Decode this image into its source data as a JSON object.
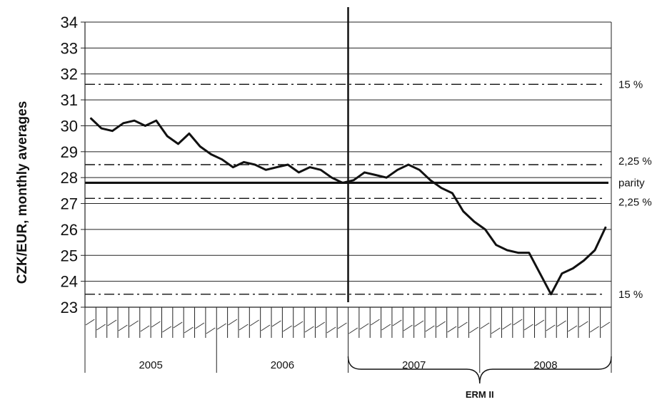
{
  "chart_data": {
    "type": "line",
    "ylabel": "CZK/EUR, monthly averages",
    "ylim": [
      23,
      34
    ],
    "yticks": [
      "23",
      "24",
      "25",
      "26",
      "27",
      "28",
      "29",
      "30",
      "31",
      "32",
      "33",
      "34"
    ],
    "years": [
      "2005",
      "2006",
      "2007",
      "2008"
    ],
    "months_per_year": 12,
    "grid": "horizontal",
    "series": [
      {
        "values": [
          30.3,
          29.9,
          29.8,
          30.1,
          30.2,
          30.0,
          30.2,
          29.6,
          29.3,
          29.7,
          29.2,
          28.9,
          28.7,
          28.4,
          28.6,
          28.5,
          28.3,
          28.4,
          28.5,
          28.2,
          28.4,
          28.3,
          28.0,
          27.8,
          27.9,
          28.2,
          28.1,
          28.0,
          28.3,
          28.5,
          28.3,
          27.9,
          27.6,
          27.4,
          26.7,
          26.3,
          26.0,
          25.4,
          25.2,
          25.1,
          25.1,
          24.3,
          23.5,
          24.3,
          24.5,
          24.8,
          25.2,
          26.1
        ]
      }
    ],
    "parity": 27.8,
    "parity_label": "parity",
    "bands": [
      {
        "value": 31.6,
        "label": "15 %"
      },
      {
        "value": 28.5,
        "label": "2,25 %"
      },
      {
        "value": 27.2,
        "label": "2,25 %"
      },
      {
        "value": 23.5,
        "label": "15 %"
      }
    ],
    "erm_label": "ERM II",
    "erm_start_index": 24
  }
}
